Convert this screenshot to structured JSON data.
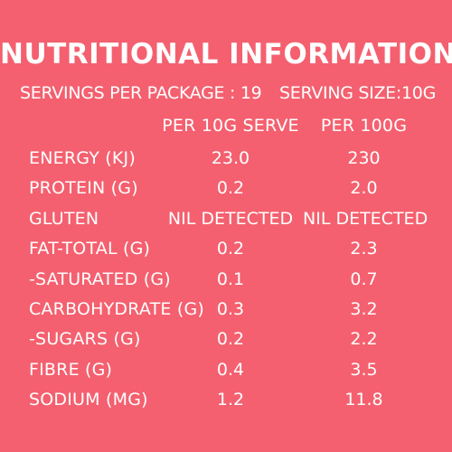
{
  "title": "NUTRITIONAL INFORMATION",
  "servings_per_package": "SERVINGS PER PACKAGE : 19",
  "serving_size": "SERVING SIZE:10G",
  "columns": {
    "per_serve": "PER 10G SERVE",
    "per_100g": "PER 100G"
  },
  "rows": [
    {
      "name": "ENERGY (KJ)",
      "per_serve": "23.0",
      "per_100g": "230"
    },
    {
      "name": "PROTEIN (G)",
      "per_serve": "0.2",
      "per_100g": "2.0"
    },
    {
      "name": "GLUTEN",
      "per_serve": "NIL DETECTED",
      "per_100g": "NIL DETECTED"
    },
    {
      "name": "FAT-TOTAL (G)",
      "per_serve": "0.2",
      "per_100g": "2.3"
    },
    {
      "name": "-SATURATED (G)",
      "per_serve": "0.1",
      "per_100g": "0.7"
    },
    {
      "name": "CARBOHYDRATE (G)",
      "per_serve": "0.3",
      "per_100g": "3.2"
    },
    {
      "name": "-SUGARS (G)",
      "per_serve": "0.2",
      "per_100g": "2.2"
    },
    {
      "name": "FIBRE (G)",
      "per_serve": "0.4",
      "per_100g": "3.5"
    },
    {
      "name": "SODIUM (MG)",
      "per_serve": "1.2",
      "per_100g": "11.8"
    }
  ],
  "colors": {
    "background": "#f4606f",
    "text": "#ffffff"
  }
}
